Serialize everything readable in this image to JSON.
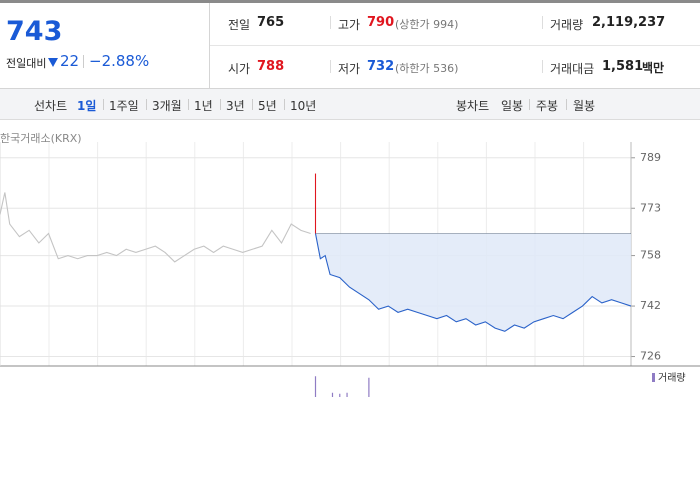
{
  "summary": {
    "price": "743",
    "change_label": "전일대비",
    "change": "22",
    "change_rate": "−2.88%"
  },
  "stats": [
    [
      {
        "label": "전일",
        "value": "765",
        "color": "#222222"
      },
      {
        "label": "고가",
        "value": "790",
        "note": "(상한가 994)",
        "color": "#e0161f"
      },
      {
        "label": "거래량",
        "value": "2,119,237",
        "color": "#222222"
      }
    ],
    [
      {
        "label": "시가",
        "value": "788",
        "color": "#e0161f"
      },
      {
        "label": "저가",
        "value": "732",
        "note": "(하한가 536)",
        "color": "#1a5ad6"
      },
      {
        "label": "거래대금",
        "value": "1,581",
        "unit": "백만",
        "color": "#222222"
      }
    ]
  ],
  "tabs": {
    "line_label": "선차트",
    "line": [
      "1일",
      "1주일",
      "3개월",
      "1년",
      "3년",
      "5년",
      "10년"
    ],
    "candle_label": "봉차트",
    "candle": [
      "일봉",
      "주봉",
      "월봉"
    ]
  },
  "chart_data": {
    "type": "line",
    "source": "한국거래소(KRX)",
    "xlim": [
      0,
      130
    ],
    "ylim": [
      723,
      794
    ],
    "yticks": [
      726,
      742,
      758,
      773,
      789
    ],
    "grid": true,
    "base_line": 765,
    "series": [
      {
        "color": "#c4c4c4",
        "x": [
          0,
          1,
          2,
          4,
          6,
          8,
          10,
          12,
          14,
          16,
          18,
          20,
          22,
          24,
          26,
          28,
          30,
          32,
          34,
          36,
          38,
          40,
          42,
          44,
          46,
          48,
          50,
          52,
          54,
          56,
          58,
          60,
          62,
          64
        ],
        "values": [
          771,
          778,
          768,
          764,
          766,
          762,
          765,
          757,
          758,
          757,
          758,
          758,
          759,
          758,
          760,
          759,
          760,
          761,
          759,
          756,
          758,
          760,
          761,
          759,
          761,
          760,
          759,
          760,
          761,
          766,
          762,
          768,
          766,
          765
        ]
      },
      {
        "color": "#e0161f",
        "x": [
          65,
          65
        ],
        "values": [
          784,
          765
        ]
      },
      {
        "color": "#2a62c9",
        "x": [
          65,
          66,
          67,
          68,
          70,
          72,
          74,
          76,
          78,
          80,
          82,
          84,
          86,
          88,
          90,
          92,
          94,
          96,
          98,
          100,
          102,
          104,
          106,
          108,
          110,
          112,
          114,
          116,
          118,
          120,
          122,
          124,
          126,
          128,
          130
        ],
        "values": [
          765,
          757,
          758,
          752,
          751,
          748,
          746,
          744,
          741,
          742,
          740,
          741,
          740,
          739,
          738,
          739,
          737,
          738,
          736,
          737,
          735,
          734,
          736,
          735,
          737,
          738,
          739,
          738,
          740,
          742,
          745,
          743,
          744,
          743,
          742
        ]
      }
    ],
    "volume": {
      "name": "거래량",
      "color": "#8f7cc4",
      "ylim": [
        0,
        100
      ],
      "x": [
        65,
        68.5,
        70,
        71.5,
        76
      ],
      "values": [
        83,
        17,
        13,
        17,
        77
      ]
    }
  }
}
